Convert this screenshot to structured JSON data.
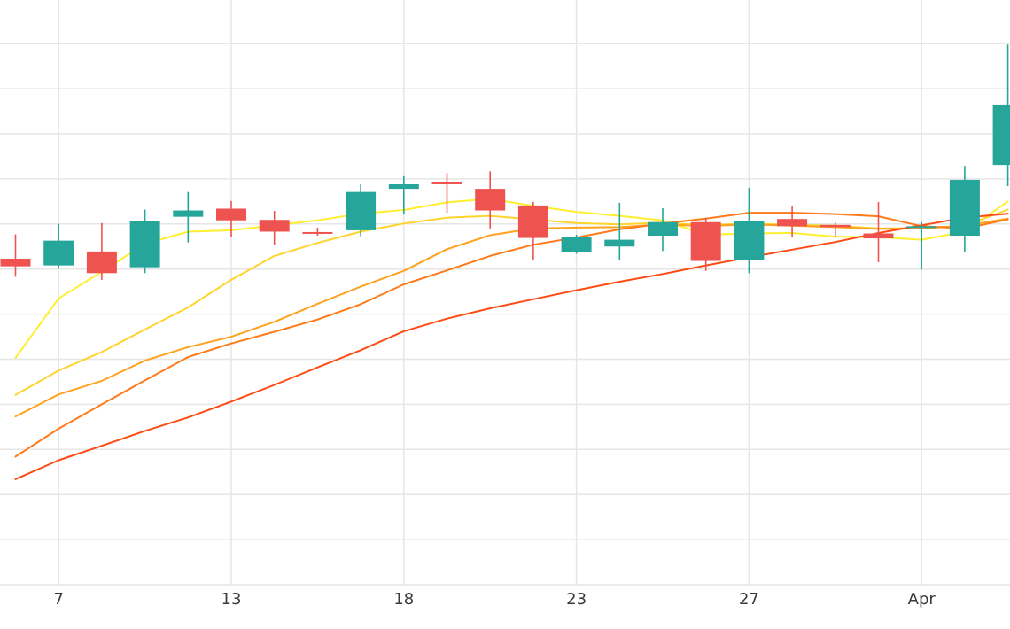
{
  "chart_data": {
    "type": "candlestick",
    "x_tick_labels": [
      {
        "label": "7",
        "t": 1
      },
      {
        "label": "13",
        "t": 5
      },
      {
        "label": "18",
        "t": 9
      },
      {
        "label": "23",
        "t": 13
      },
      {
        "label": "27",
        "t": 17
      },
      {
        "label": "Apr",
        "t": 21
      }
    ],
    "ylim": [
      0,
      13
    ],
    "grid": true,
    "up_color": "#26a69a",
    "down_color": "#ef5350",
    "candles": [
      {
        "t": 0,
        "open": 7.23,
        "close": 7.06,
        "high": 7.77,
        "low": 6.83
      },
      {
        "t": 1,
        "open": 7.08,
        "close": 7.63,
        "high": 8.0,
        "low": 7.02
      },
      {
        "t": 2,
        "open": 7.39,
        "close": 6.91,
        "high": 8.02,
        "low": 6.76
      },
      {
        "t": 3,
        "open": 7.04,
        "close": 8.06,
        "high": 8.32,
        "low": 6.91
      },
      {
        "t": 4,
        "open": 8.16,
        "close": 8.3,
        "high": 8.71,
        "low": 7.59
      },
      {
        "t": 5,
        "open": 8.34,
        "close": 8.08,
        "high": 8.51,
        "low": 7.71
      },
      {
        "t": 6,
        "open": 8.09,
        "close": 7.83,
        "high": 8.29,
        "low": 7.53
      },
      {
        "t": 7,
        "open": 7.82,
        "close": 7.8,
        "high": 7.92,
        "low": 7.74
      },
      {
        "t": 8,
        "open": 7.86,
        "close": 8.71,
        "high": 8.88,
        "low": 7.73
      },
      {
        "t": 9,
        "open": 8.78,
        "close": 8.88,
        "high": 9.06,
        "low": 8.22
      },
      {
        "t": 10,
        "open": 8.92,
        "close": 8.9,
        "high": 9.13,
        "low": 8.25
      },
      {
        "t": 11,
        "open": 8.78,
        "close": 8.3,
        "high": 9.17,
        "low": 7.9
      },
      {
        "t": 12,
        "open": 8.41,
        "close": 7.69,
        "high": 8.49,
        "low": 7.2
      },
      {
        "t": 13,
        "open": 7.38,
        "close": 7.72,
        "high": 7.76,
        "low": 7.34
      },
      {
        "t": 14,
        "open": 7.5,
        "close": 7.65,
        "high": 8.47,
        "low": 7.19
      },
      {
        "t": 15,
        "open": 7.74,
        "close": 8.04,
        "high": 8.35,
        "low": 7.4
      },
      {
        "t": 16,
        "open": 8.04,
        "close": 7.18,
        "high": 8.13,
        "low": 6.96
      },
      {
        "t": 17,
        "open": 7.19,
        "close": 8.06,
        "high": 8.8,
        "low": 6.91
      },
      {
        "t": 18,
        "open": 8.11,
        "close": 7.95,
        "high": 8.39,
        "low": 7.7
      },
      {
        "t": 19,
        "open": 7.98,
        "close": 7.93,
        "high": 8.03,
        "low": 7.71
      },
      {
        "t": 20,
        "open": 7.79,
        "close": 7.68,
        "high": 8.49,
        "low": 7.15
      },
      {
        "t": 21,
        "open": 7.93,
        "close": 7.95,
        "high": 8.04,
        "low": 6.99
      },
      {
        "t": 22,
        "open": 7.74,
        "close": 8.98,
        "high": 9.29,
        "low": 7.38
      },
      {
        "t": 23,
        "open": 9.31,
        "close": 10.65,
        "high": 11.98,
        "low": 8.84
      }
    ],
    "series": [
      {
        "color": "#ffee2e",
        "values": [
          [
            0,
            5.03
          ],
          [
            1,
            6.35
          ],
          [
            2,
            6.94
          ],
          [
            3,
            7.56
          ],
          [
            4,
            7.83
          ],
          [
            5,
            7.86
          ],
          [
            6,
            7.97
          ],
          [
            7,
            8.08
          ],
          [
            8,
            8.23
          ],
          [
            9,
            8.31
          ],
          [
            10,
            8.48
          ],
          [
            11,
            8.56
          ],
          [
            12,
            8.4
          ],
          [
            13,
            8.27
          ],
          [
            14,
            8.18
          ],
          [
            15,
            8.08
          ],
          [
            16,
            7.76
          ],
          [
            17,
            7.79
          ],
          [
            18,
            7.8
          ],
          [
            19,
            7.72
          ],
          [
            20,
            7.71
          ],
          [
            21,
            7.65
          ],
          [
            22,
            7.83
          ],
          [
            23,
            8.5
          ]
        ]
      },
      {
        "color": "#ffd42e",
        "values": [
          [
            0,
            4.21
          ],
          [
            1,
            4.75
          ],
          [
            2,
            5.16
          ],
          [
            3,
            5.66
          ],
          [
            4,
            6.15
          ],
          [
            5,
            6.76
          ],
          [
            6,
            7.29
          ],
          [
            7,
            7.58
          ],
          [
            8,
            7.83
          ],
          [
            9,
            8.01
          ],
          [
            10,
            8.14
          ],
          [
            11,
            8.18
          ],
          [
            12,
            8.1
          ],
          [
            13,
            8.02
          ],
          [
            14,
            7.99
          ],
          [
            15,
            8.03
          ],
          [
            16,
            7.97
          ],
          [
            17,
            8.01
          ],
          [
            18,
            7.98
          ],
          [
            19,
            7.96
          ],
          [
            20,
            7.9
          ],
          [
            21,
            7.91
          ],
          [
            22,
            7.96
          ],
          [
            23,
            8.32
          ]
        ]
      },
      {
        "color": "#ffa21f",
        "values": [
          [
            0,
            3.73
          ],
          [
            1,
            4.22
          ],
          [
            2,
            4.52
          ],
          [
            3,
            4.97
          ],
          [
            4,
            5.27
          ],
          [
            5,
            5.5
          ],
          [
            6,
            5.83
          ],
          [
            7,
            6.23
          ],
          [
            8,
            6.61
          ],
          [
            9,
            6.96
          ],
          [
            10,
            7.44
          ],
          [
            11,
            7.75
          ],
          [
            12,
            7.9
          ],
          [
            13,
            7.92
          ],
          [
            14,
            7.93
          ],
          [
            15,
            7.99
          ],
          [
            16,
            7.95
          ],
          [
            17,
            7.99
          ],
          [
            18,
            7.96
          ],
          [
            19,
            7.93
          ],
          [
            20,
            7.89
          ],
          [
            21,
            7.9
          ],
          [
            22,
            7.96
          ],
          [
            23,
            8.12
          ]
        ]
      },
      {
        "color": "#ff7a1a",
        "values": [
          [
            0,
            2.84
          ],
          [
            1,
            3.46
          ],
          [
            2,
            4.0
          ],
          [
            3,
            4.53
          ],
          [
            4,
            5.05
          ],
          [
            5,
            5.35
          ],
          [
            6,
            5.61
          ],
          [
            7,
            5.88
          ],
          [
            8,
            6.22
          ],
          [
            9,
            6.66
          ],
          [
            10,
            6.97
          ],
          [
            11,
            7.29
          ],
          [
            12,
            7.54
          ],
          [
            13,
            7.7
          ],
          [
            14,
            7.88
          ],
          [
            15,
            8.01
          ],
          [
            16,
            8.12
          ],
          [
            17,
            8.25
          ],
          [
            18,
            8.25
          ],
          [
            19,
            8.22
          ],
          [
            20,
            8.17
          ],
          [
            21,
            7.95
          ],
          [
            22,
            7.9
          ],
          [
            23,
            8.1
          ]
        ]
      },
      {
        "color": "#ff4b14",
        "values": [
          [
            0,
            2.34
          ],
          [
            1,
            2.76
          ],
          [
            2,
            3.08
          ],
          [
            3,
            3.41
          ],
          [
            4,
            3.71
          ],
          [
            5,
            4.06
          ],
          [
            6,
            4.43
          ],
          [
            7,
            4.82
          ],
          [
            8,
            5.2
          ],
          [
            9,
            5.62
          ],
          [
            10,
            5.9
          ],
          [
            11,
            6.13
          ],
          [
            12,
            6.33
          ],
          [
            13,
            6.53
          ],
          [
            14,
            6.72
          ],
          [
            15,
            6.89
          ],
          [
            16,
            7.08
          ],
          [
            17,
            7.26
          ],
          [
            18,
            7.43
          ],
          [
            19,
            7.6
          ],
          [
            20,
            7.8
          ],
          [
            21,
            7.97
          ],
          [
            22,
            8.14
          ],
          [
            23,
            8.23
          ]
        ]
      }
    ]
  }
}
